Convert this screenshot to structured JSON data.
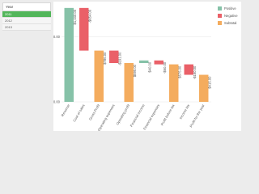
{
  "panel": {
    "search": "Year",
    "items": [
      "2011",
      "2012",
      "2013"
    ]
  },
  "chart_data": {
    "type": "waterfall",
    "categories": [
      "Revenue",
      "Cost of sales",
      "Gross Profit",
      "Operating expenses",
      "Operating profit",
      "Financial income",
      "Financial expenses",
      "Profit before tax",
      "Income tax",
      "Profit for the year"
    ],
    "values": [
      1440,
      -654,
      786,
      -191,
      595,
      40,
      -60,
      575,
      -160,
      415
    ],
    "value_labels": [
      "$1,440.00",
      "-$654.00",
      "$786.00",
      "-$191.00",
      "$595.00",
      "$40.00",
      "-$60.00",
      "$575.00",
      "-$160.00",
      "$415.00"
    ],
    "kinds": [
      "Positive",
      "Negative",
      "Subtotal",
      "Negative",
      "Subtotal",
      "Positive",
      "Negative",
      "Subtotal",
      "Negative",
      "Subtotal"
    ],
    "legend": [
      {
        "name": "Positive",
        "color": "#86c2a8"
      },
      {
        "name": "Negative",
        "color": "#ea6068"
      },
      {
        "name": "Subtotal",
        "color": "#f4ac5e"
      }
    ],
    "ylim": [
      0,
      1500
    ],
    "yticks": [
      {
        "value": 0,
        "label": "$0.00"
      },
      {
        "value": 1000,
        "label": "$1,000.00"
      }
    ]
  }
}
